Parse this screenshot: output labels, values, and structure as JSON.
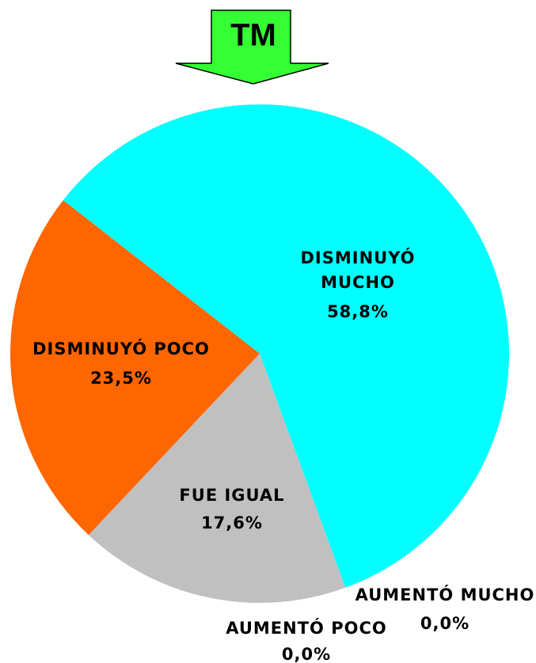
{
  "chart_data": {
    "type": "pie",
    "title": "TM",
    "categories": [
      "DISMINUYÓ MUCHO",
      "AUMENTÓ MUCHO",
      "AUMENTÓ POCO",
      "FUE IGUAL",
      "DISMINUYÓ POCO"
    ],
    "values": [
      58.8,
      0,
      0,
      17.6,
      23.5
    ],
    "value_labels": [
      "58,8%",
      "0,0%",
      "0,0%",
      "17,6%",
      "23,5%"
    ],
    "colors": [
      "#00ffff",
      null,
      null,
      "#c0c0c0",
      "#ff6600"
    ]
  }
}
